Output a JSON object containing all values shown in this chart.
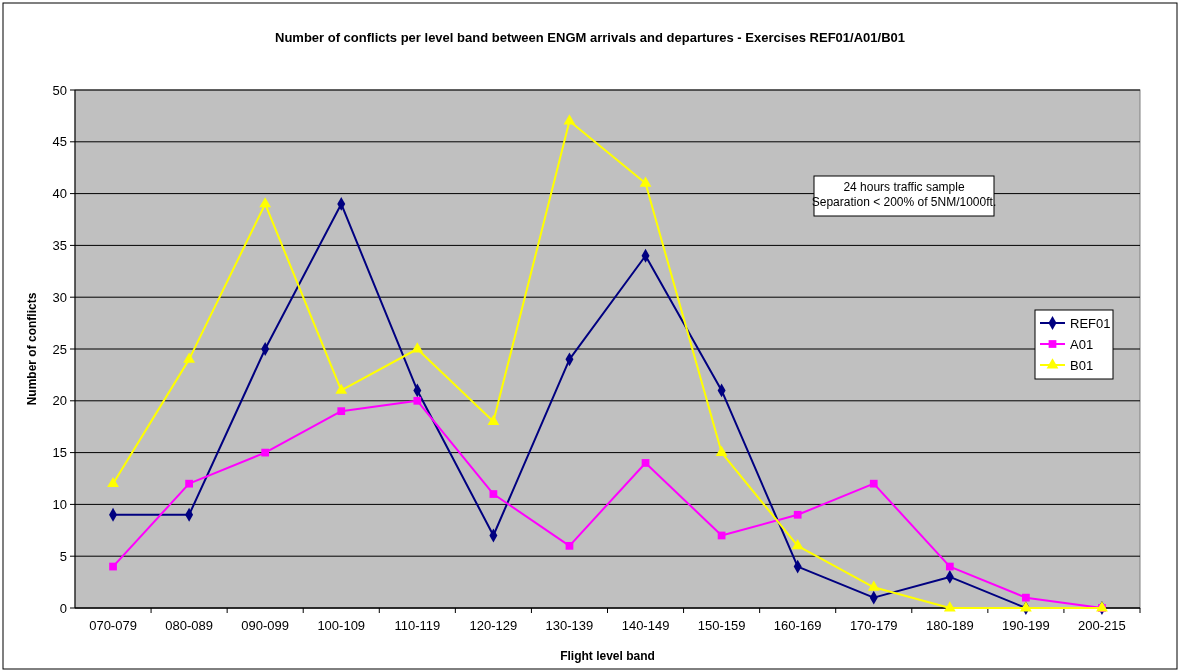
{
  "chart_data": {
    "type": "line",
    "title": "Number of conflicts per level band between ENGM arrivals and departures - Exercises REF01/A01/B01",
    "xlabel": "Flight level band",
    "ylabel": "Number of conflicts",
    "categories": [
      "070-079",
      "080-089",
      "090-099",
      "100-109",
      "110-119",
      "120-129",
      "130-139",
      "140-149",
      "150-159",
      "160-169",
      "170-179",
      "180-189",
      "190-199",
      "200-215"
    ],
    "series": [
      {
        "name": "REF01",
        "color": "#000080",
        "marker": "diamond",
        "values": [
          9,
          9,
          25,
          39,
          21,
          7,
          24,
          34,
          21,
          4,
          1,
          3,
          0,
          0
        ]
      },
      {
        "name": "A01",
        "color": "#ff00ff",
        "marker": "square",
        "values": [
          4,
          12,
          15,
          19,
          20,
          11,
          6,
          14,
          7,
          9,
          12,
          4,
          1,
          0
        ]
      },
      {
        "name": "B01",
        "color": "#ffff00",
        "marker": "triangle",
        "values": [
          12,
          24,
          39,
          21,
          25,
          18,
          47,
          41,
          15,
          6,
          2,
          0,
          0,
          0
        ]
      }
    ],
    "ylim": [
      0,
      50
    ],
    "yticks": [
      0,
      5,
      10,
      15,
      20,
      25,
      30,
      35,
      40,
      45,
      50
    ],
    "grid": "y",
    "legend": "right",
    "line_style": "solid",
    "annotations": [
      "24 hours traffic sample\nSeparation < 200% of 5NM/1000ft."
    ]
  }
}
